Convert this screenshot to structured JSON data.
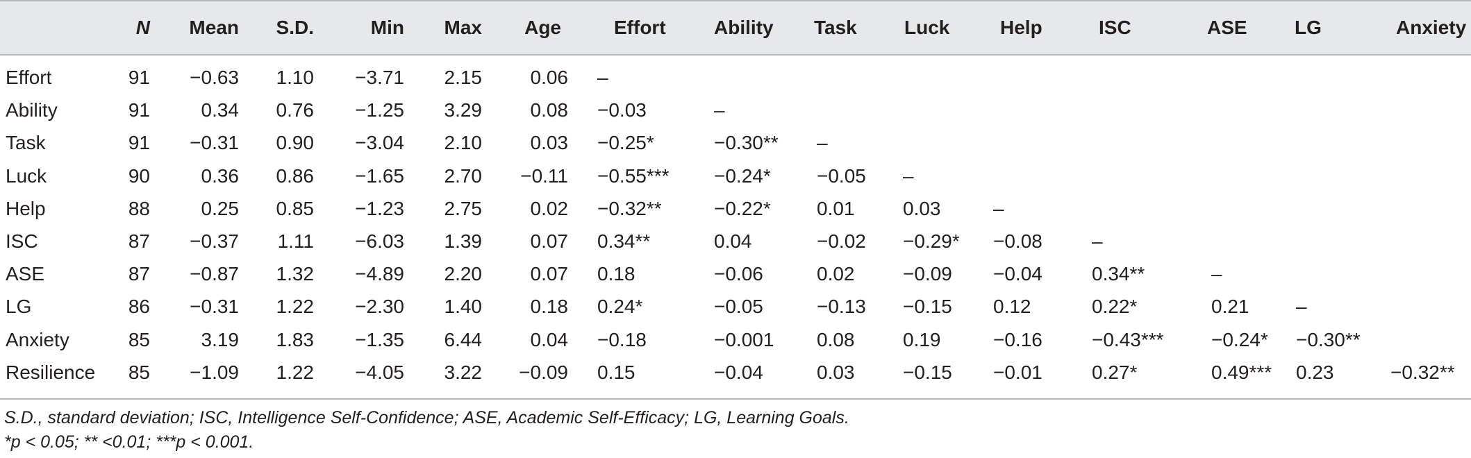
{
  "table": {
    "columns": [
      "N",
      "Mean",
      "S.D.",
      "Min",
      "Max",
      "Age",
      "Effort",
      "Ability",
      "Task",
      "Luck",
      "Help",
      "ISC",
      "ASE",
      "LG",
      "Anxiety"
    ],
    "rows": [
      {
        "label": "Effort",
        "values": [
          "91",
          "−0.63",
          "1.10",
          "−3.71",
          "2.15",
          "0.06",
          "–",
          "",
          "",
          "",
          "",
          "",
          "",
          "",
          ""
        ]
      },
      {
        "label": "Ability",
        "values": [
          "91",
          "0.34",
          "0.76",
          "−1.25",
          "3.29",
          "0.08",
          "−0.03",
          "–",
          "",
          "",
          "",
          "",
          "",
          "",
          ""
        ]
      },
      {
        "label": "Task",
        "values": [
          "91",
          "−0.31",
          "0.90",
          "−3.04",
          "2.10",
          "0.03",
          "−0.25*",
          "−0.30**",
          "–",
          "",
          "",
          "",
          "",
          "",
          ""
        ]
      },
      {
        "label": "Luck",
        "values": [
          "90",
          "0.36",
          "0.86",
          "−1.65",
          "2.70",
          "−0.11",
          "−0.55***",
          "−0.24*",
          "−0.05",
          "–",
          "",
          "",
          "",
          "",
          ""
        ]
      },
      {
        "label": "Help",
        "values": [
          "88",
          "0.25",
          "0.85",
          "−1.23",
          "2.75",
          "0.02",
          "−0.32**",
          "−0.22*",
          "0.01",
          "0.03",
          "–",
          "",
          "",
          "",
          ""
        ]
      },
      {
        "label": "ISC",
        "values": [
          "87",
          "−0.37",
          "1.11",
          "−6.03",
          "1.39",
          "0.07",
          "0.34**",
          "0.04",
          "−0.02",
          "−0.29*",
          "−0.08",
          "–",
          "",
          "",
          ""
        ]
      },
      {
        "label": "ASE",
        "values": [
          "87",
          "−0.87",
          "1.32",
          "−4.89",
          "2.20",
          "0.07",
          "0.18",
          "−0.06",
          "0.02",
          "−0.09",
          "−0.04",
          "0.34**",
          "–",
          "",
          ""
        ]
      },
      {
        "label": "LG",
        "values": [
          "86",
          "−0.31",
          "1.22",
          "−2.30",
          "1.40",
          "0.18",
          "0.24*",
          "−0.05",
          "−0.13",
          "−0.15",
          "0.12",
          "0.22*",
          "0.21",
          "–",
          ""
        ]
      },
      {
        "label": "Anxiety",
        "values": [
          "85",
          "3.19",
          "1.83",
          "−1.35",
          "6.44",
          "0.04",
          "−0.18",
          "−0.001",
          "0.08",
          "0.19",
          "−0.16",
          "−0.43***",
          "−0.24*",
          "−0.30**",
          ""
        ]
      },
      {
        "label": "Resilience",
        "values": [
          "85",
          "−1.09",
          "1.22",
          "−4.05",
          "3.22",
          "−0.09",
          "0.15",
          "−0.04",
          "0.03",
          "−0.15",
          "−0.01",
          "0.27*",
          "0.49***",
          "0.23",
          "−0.32**"
        ]
      }
    ]
  },
  "footnotes": [
    "S.D., standard deviation; ISC, Intelligence Self-Confidence; ASE, Academic Self-Efficacy; LG, Learning Goals.",
    "*p < 0.05; ** <0.01; ***p < 0.001."
  ],
  "colors": {
    "header_background": "#e7e8e9",
    "rule": "#b7b8ba",
    "text": "#231f20"
  }
}
